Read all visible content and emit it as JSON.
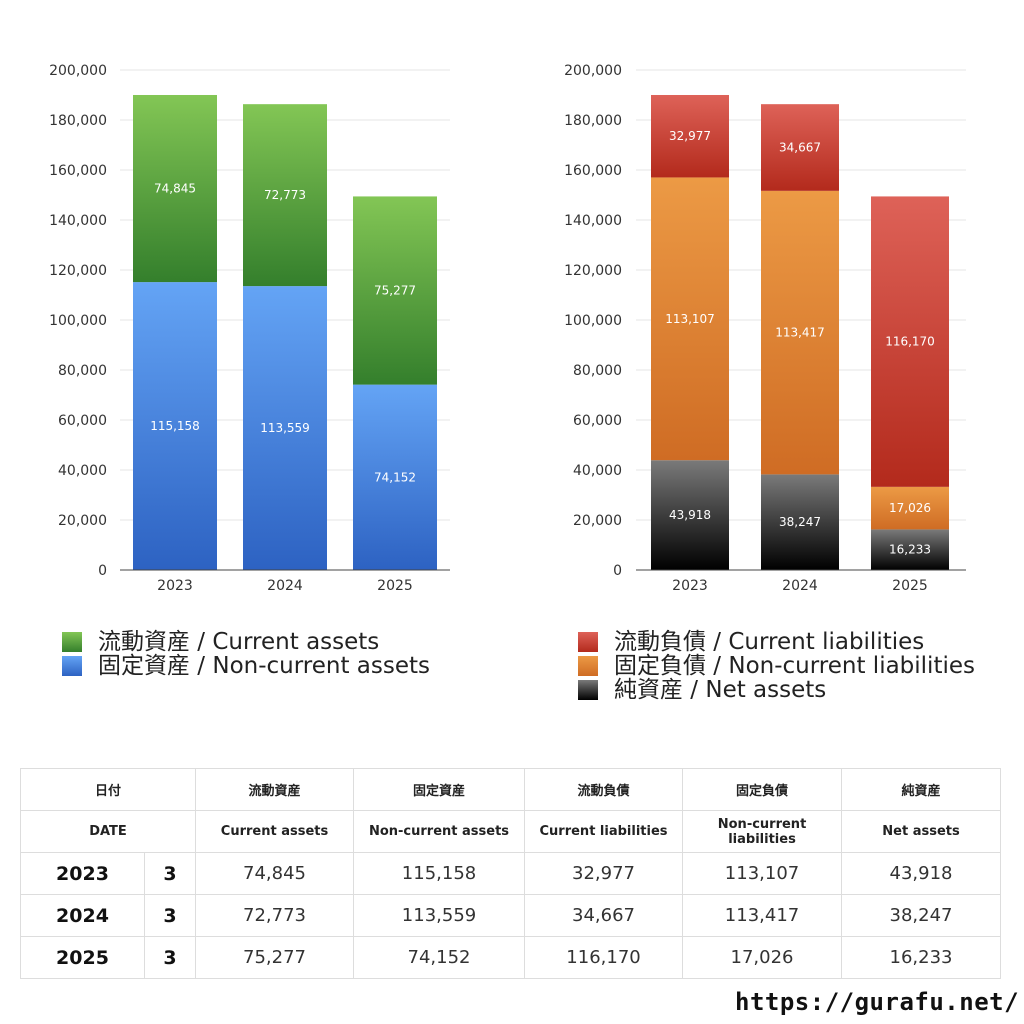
{
  "chart_data": [
    {
      "type": "bar",
      "stacked": true,
      "categories": [
        "2023",
        "2024",
        "2025"
      ],
      "ylim": [
        0,
        200000
      ],
      "yticks": [
        "0",
        "20,000",
        "40,000",
        "60,000",
        "80,000",
        "100,000",
        "120,000",
        "140,000",
        "160,000",
        "180,000",
        "200,000"
      ],
      "grid": true,
      "series": [
        {
          "name": "固定資産 / Non-current assets",
          "values": [
            115158,
            113559,
            74152
          ],
          "labels": [
            "115,158",
            "113,559",
            "74,152"
          ],
          "color": "#3d7fd6"
        },
        {
          "name": "流動資産 / Current assets",
          "values": [
            74845,
            72773,
            75277
          ],
          "labels": [
            "74,845",
            "72,773",
            "75,277"
          ],
          "color": "#4a9e3c"
        }
      ],
      "legend": [
        "流動資産 / Current assets",
        "固定資産 / Non-current assets"
      ],
      "legend_position": "bottom"
    },
    {
      "type": "bar",
      "stacked": true,
      "categories": [
        "2023",
        "2024",
        "2025"
      ],
      "ylim": [
        0,
        200000
      ],
      "yticks": [
        "0",
        "20,000",
        "40,000",
        "60,000",
        "80,000",
        "100,000",
        "120,000",
        "140,000",
        "160,000",
        "180,000",
        "200,000"
      ],
      "grid": true,
      "series": [
        {
          "name": "純資産 / Net assets",
          "values": [
            43918,
            38247,
            16233
          ],
          "labels": [
            "43,918",
            "38,247",
            "16,233"
          ],
          "color": "#333333"
        },
        {
          "name": "固定負債 / Non-current liabilities",
          "values": [
            113107,
            113417,
            17026
          ],
          "labels": [
            "113,107",
            "113,417",
            "17,026"
          ],
          "color": "#e07c2a"
        },
        {
          "name": "流動負債 / Current liabilities",
          "values": [
            32977,
            34667,
            116170
          ],
          "labels": [
            "32,977",
            "34,667",
            "116,170"
          ],
          "color": "#cc3a2e"
        }
      ],
      "legend": [
        "流動負債 / Current liabilities",
        "固定負債 / Non-current liabilities",
        "純資産 / Net assets"
      ],
      "legend_position": "bottom"
    }
  ],
  "table": {
    "headers_jp": [
      "日付",
      "流動資産",
      "固定資産",
      "流動負債",
      "固定負債",
      "純資産"
    ],
    "headers_en": [
      "DATE",
      "Current assets",
      "Non-current assets",
      "Current liabilities",
      "Non-current liabilities",
      "Net assets"
    ],
    "rows": [
      {
        "year": "2023",
        "month": "3",
        "cells": [
          "74,845",
          "115,158",
          "32,977",
          "113,107",
          "43,918"
        ]
      },
      {
        "year": "2024",
        "month": "3",
        "cells": [
          "72,773",
          "113,559",
          "34,667",
          "113,417",
          "38,247"
        ]
      },
      {
        "year": "2025",
        "month": "3",
        "cells": [
          "75,277",
          "74,152",
          "116,170",
          "17,026",
          "16,233"
        ]
      }
    ]
  },
  "footer_url": "https://gurafu.net/"
}
